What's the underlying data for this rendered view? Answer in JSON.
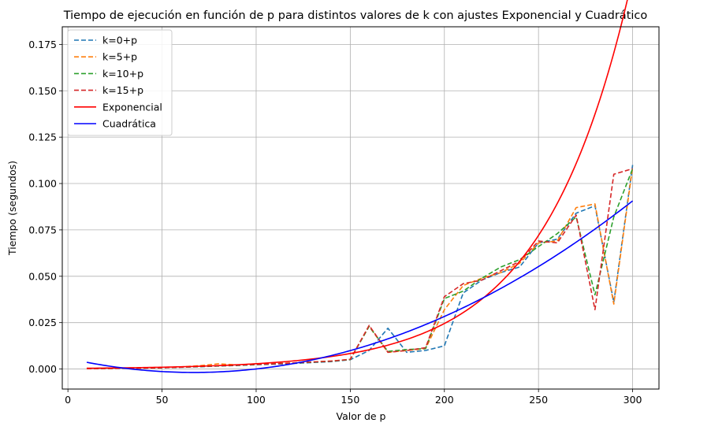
{
  "chart_data": {
    "type": "line",
    "title": "Tiempo de ejecución en función de p para distintos valores de k con ajustes Exponencial y Cuadrático",
    "xlabel": "Valor de p",
    "ylabel": "Tiempo (segundos)",
    "xlim": [
      -3,
      314
    ],
    "ylim": [
      -0.0108,
      0.1845
    ],
    "xticks": [
      0,
      50,
      100,
      150,
      200,
      250,
      300
    ],
    "xtick_labels": [
      "0",
      "50",
      "100",
      "150",
      "200",
      "250",
      "300"
    ],
    "yticks": [
      0.0,
      0.025,
      0.05,
      0.075,
      0.1,
      0.125,
      0.15,
      0.175
    ],
    "ytick_labels": [
      "0.000",
      "0.025",
      "0.050",
      "0.075",
      "0.100",
      "0.125",
      "0.150",
      "0.175"
    ],
    "grid": true,
    "legend_position": "upper-left",
    "x": [
      10,
      20,
      30,
      40,
      50,
      60,
      70,
      80,
      90,
      100,
      110,
      120,
      130,
      140,
      150,
      160,
      170,
      180,
      190,
      200,
      210,
      220,
      230,
      240,
      250,
      260,
      270,
      280,
      290,
      300
    ],
    "series": [
      {
        "name": "k=0+p",
        "style": "dashed",
        "color": "#1f77b4",
        "values": [
          0.0002,
          0.0003,
          0.0004,
          0.0005,
          0.0007,
          0.0009,
          0.0012,
          0.0016,
          0.0019,
          0.0023,
          0.0026,
          0.003,
          0.0035,
          0.004,
          0.005,
          0.01,
          0.022,
          0.009,
          0.01,
          0.0125,
          0.041,
          0.048,
          0.052,
          0.055,
          0.068,
          0.07,
          0.084,
          0.088,
          0.036,
          0.11
        ]
      },
      {
        "name": "k=5+p",
        "style": "dashed",
        "color": "#ff7f0e",
        "values": [
          0.0002,
          0.0003,
          0.0004,
          0.0006,
          0.0008,
          0.0011,
          0.0018,
          0.0028,
          0.0022,
          0.0025,
          0.0029,
          0.0033,
          0.0038,
          0.0043,
          0.0052,
          0.023,
          0.009,
          0.01,
          0.011,
          0.032,
          0.045,
          0.049,
          0.052,
          0.057,
          0.068,
          0.069,
          0.087,
          0.089,
          0.035,
          0.109
        ]
      },
      {
        "name": "k=10+p",
        "style": "dashed",
        "color": "#2ca02c",
        "values": [
          0.0002,
          0.0003,
          0.0004,
          0.0005,
          0.0007,
          0.001,
          0.0013,
          0.0017,
          0.002,
          0.0024,
          0.0028,
          0.0032,
          0.0037,
          0.0042,
          0.0051,
          0.023,
          0.0095,
          0.0105,
          0.011,
          0.038,
          0.042,
          0.049,
          0.055,
          0.059,
          0.066,
          0.073,
          0.082,
          0.04,
          0.082,
          0.108
        ]
      },
      {
        "name": "k=15+p",
        "style": "dashed",
        "color": "#d62728",
        "values": [
          0.0002,
          0.0003,
          0.0004,
          0.0005,
          0.0007,
          0.001,
          0.0014,
          0.0018,
          0.0021,
          0.0025,
          0.0028,
          0.0033,
          0.0038,
          0.0043,
          0.0052,
          0.0235,
          0.009,
          0.01,
          0.0115,
          0.039,
          0.046,
          0.048,
          0.053,
          0.058,
          0.069,
          0.068,
          0.083,
          0.032,
          0.105,
          0.108
        ]
      },
      {
        "name": "Exponencial",
        "style": "solid",
        "color": "#ff0000",
        "fit": {
          "kind": "exponential",
          "a": 0.000331,
          "b": 0.02153
        }
      },
      {
        "name": "Cuadrática",
        "style": "solid",
        "color": "#0000ff",
        "fit": {
          "kind": "quadratic",
          "a": 1.7e-06,
          "b": -0.000227,
          "c": 0.00573
        }
      }
    ],
    "fit_x_range": [
      10,
      300
    ]
  }
}
